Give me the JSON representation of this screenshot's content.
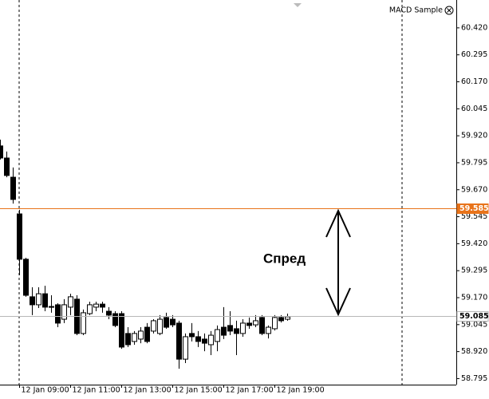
{
  "chart_data": {
    "type": "candlestick",
    "indicator_label": "MACD Sample",
    "annotation": "Спред",
    "categories": [
      null,
      null,
      null,
      "12 Jan 09:00",
      null,
      null,
      null,
      null,
      null,
      null,
      null,
      "12 Jan 11:00",
      null,
      null,
      null,
      null,
      null,
      null,
      null,
      "12 Jan 13:00",
      null,
      null,
      null,
      null,
      null,
      null,
      null,
      "12 Jan 15:00",
      null,
      null,
      null,
      null,
      null,
      null,
      null,
      "12 Jan 17:00",
      null,
      null,
      null,
      null,
      null,
      null,
      null,
      "12 Jan 19:00",
      null,
      null
    ],
    "open": [
      59.873,
      59.817,
      59.728,
      59.558,
      59.348,
      59.174,
      59.137,
      59.188,
      59.126,
      59.137,
      59.07,
      59.126,
      59.163,
      59.004,
      59.096,
      59.126,
      59.14,
      59.107,
      59.096,
      59.096,
      59.004,
      58.967,
      58.978,
      59.033,
      59.015,
      59.004,
      59.078,
      59.07,
      59.052,
      58.885,
      59.004,
      58.989,
      58.978,
      58.952,
      58.967,
      59.033,
      59.041,
      59.026,
      59.004,
      59.052,
      59.044,
      59.078,
      59.004,
      59.026,
      59.078,
      59.07
    ],
    "high": [
      59.902,
      59.847,
      59.773,
      59.577,
      59.355,
      59.218,
      59.218,
      59.225,
      59.181,
      59.144,
      59.163,
      59.188,
      59.181,
      59.115,
      59.151,
      59.151,
      59.151,
      59.126,
      59.107,
      59.107,
      59.033,
      59.015,
      59.033,
      59.052,
      59.07,
      59.089,
      59.1,
      59.089,
      59.063,
      59.004,
      59.052,
      59.015,
      59.004,
      59.015,
      59.041,
      59.126,
      59.107,
      59.063,
      59.07,
      59.078,
      59.089,
      59.089,
      59.041,
      59.089,
      59.089,
      59.096
    ],
    "low": [
      59.81,
      59.728,
      59.606,
      59.274,
      59.174,
      59.089,
      59.122,
      59.107,
      59.1,
      59.033,
      59.052,
      59.089,
      58.996,
      58.996,
      59.089,
      59.107,
      59.1,
      59.07,
      59.033,
      58.933,
      58.941,
      58.952,
      58.959,
      58.959,
      59.004,
      58.996,
      59.026,
      59.033,
      58.841,
      58.867,
      58.967,
      58.941,
      58.922,
      58.904,
      58.922,
      58.978,
      58.996,
      58.904,
      58.989,
      59.026,
      59.033,
      58.996,
      58.981,
      59.018,
      59.055,
      59.063
    ],
    "close": [
      59.817,
      59.736,
      59.625,
      59.348,
      59.181,
      59.137,
      59.188,
      59.126,
      59.129,
      59.052,
      59.137,
      59.174,
      59.004,
      59.1,
      59.137,
      59.14,
      59.126,
      59.089,
      59.041,
      58.941,
      58.952,
      59.004,
      59.015,
      58.967,
      59.063,
      59.07,
      59.033,
      59.044,
      58.885,
      58.989,
      58.989,
      58.967,
      58.959,
      58.996,
      59.022,
      58.996,
      59.015,
      59.004,
      59.052,
      59.041,
      59.063,
      59.004,
      59.033,
      59.078,
      59.063,
      59.081
    ],
    "ylim": [
      58.767,
      60.549
    ],
    "yticks": [
      {
        "value": 58.795,
        "label": "58.795"
      },
      {
        "value": 58.92,
        "label": "58.920"
      },
      {
        "value": 59.045,
        "label": "59.045"
      },
      {
        "value": 59.17,
        "label": "59.170"
      },
      {
        "value": 59.295,
        "label": "59.295"
      },
      {
        "value": 59.42,
        "label": "59.420"
      },
      {
        "value": 59.545,
        "label": "59.545"
      },
      {
        "value": 59.67,
        "label": "59.670"
      },
      {
        "value": 59.795,
        "label": "59.795"
      },
      {
        "value": 59.92,
        "label": "59.920"
      },
      {
        "value": 60.045,
        "label": "60.045"
      },
      {
        "value": 60.17,
        "label": "60.170"
      },
      {
        "value": 60.295,
        "label": "60.295"
      },
      {
        "value": 60.42,
        "label": "60.420"
      }
    ],
    "levels": [
      {
        "value": 59.585,
        "label": "59.585",
        "color": "#e8731a"
      },
      {
        "value": 59.085,
        "label": "59.085",
        "color": "#b8b8b8"
      }
    ]
  }
}
